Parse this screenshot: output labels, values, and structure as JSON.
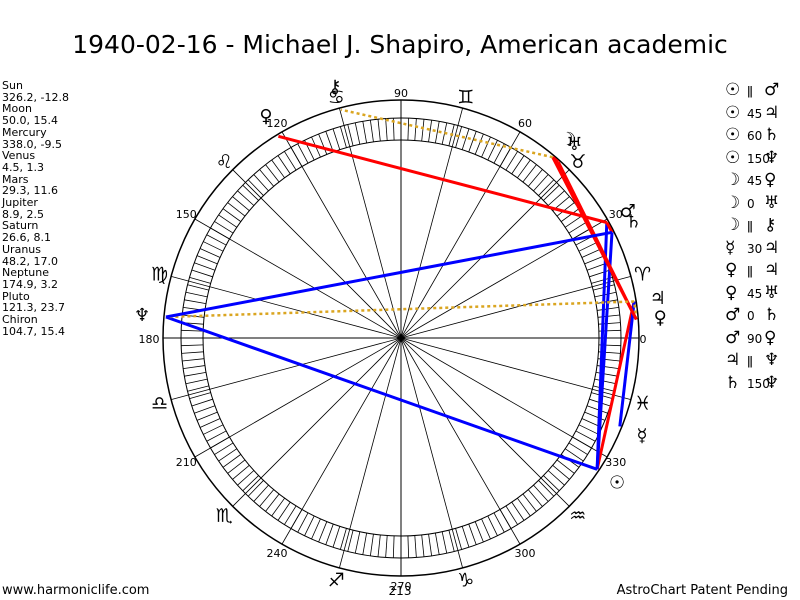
{
  "title": "1940-02-16 - Michael J. Shapiro, American academic",
  "planets": [
    {
      "name": "Sun",
      "coords": "326.2, -12.8",
      "symbol": "☉",
      "lon": 326.2
    },
    {
      "name": "Moon",
      "coords": "50.0, 15.4",
      "symbol": "☽",
      "lon": 50.0
    },
    {
      "name": "Mercury",
      "coords": "338.0, -9.5",
      "symbol": "☿",
      "lon": 338.0
    },
    {
      "name": "Venus",
      "coords": "4.5, 1.3",
      "symbol": "♀",
      "lon": 4.5
    },
    {
      "name": "Mars",
      "coords": "29.3, 11.6",
      "symbol": "♂",
      "lon": 29.3
    },
    {
      "name": "Jupiter",
      "coords": "8.9, 2.5",
      "symbol": "♃",
      "lon": 8.9
    },
    {
      "name": "Saturn",
      "coords": "26.6, 8.1",
      "symbol": "♄",
      "lon": 26.6
    },
    {
      "name": "Uranus",
      "coords": "48.2, 17.0",
      "symbol": "♅",
      "lon": 48.2
    },
    {
      "name": "Neptune",
      "coords": "174.9, 3.2",
      "symbol": "♆",
      "lon": 174.9
    },
    {
      "name": "Pluto",
      "coords": "121.3, 23.7",
      "symbol": "♀",
      "lon": 121.3
    },
    {
      "name": "Chiron",
      "coords": "104.7, 15.4",
      "symbol": "⚷",
      "lon": 104.7
    }
  ],
  "aspects": [
    {
      "p1": "☉",
      "angle": "ǁ",
      "p2": "♂"
    },
    {
      "p1": "☉",
      "angle": "45",
      "p2": "♃"
    },
    {
      "p1": "☉",
      "angle": "60",
      "p2": "♄"
    },
    {
      "p1": "☉",
      "angle": "150",
      "p2": "♆"
    },
    {
      "p1": "☽",
      "angle": "45",
      "p2": "♀"
    },
    {
      "p1": "☽",
      "angle": "0",
      "p2": "♅"
    },
    {
      "p1": "☽",
      "angle": "ǁ",
      "p2": "⚷"
    },
    {
      "p1": "☿",
      "angle": "30",
      "p2": "♃"
    },
    {
      "p1": "♀",
      "angle": "ǁ",
      "p2": "♃"
    },
    {
      "p1": "♀",
      "angle": "45",
      "p2": "♅"
    },
    {
      "p1": "♂",
      "angle": "0",
      "p2": "♄"
    },
    {
      "p1": "♂",
      "angle": "90",
      "p2": "♀"
    },
    {
      "p1": "♃",
      "angle": "ǁ",
      "p2": "♆"
    },
    {
      "p1": "♄",
      "angle": "150",
      "p2": "♆"
    }
  ],
  "wheel": {
    "degree_labels": [
      {
        "deg": 0,
        "text": "0"
      },
      {
        "deg": 30,
        "text": "30"
      },
      {
        "deg": 60,
        "text": "60"
      },
      {
        "deg": 90,
        "text": "90"
      },
      {
        "deg": 120,
        "text": "120"
      },
      {
        "deg": 150,
        "text": "150"
      },
      {
        "deg": 180,
        "text": "180"
      },
      {
        "deg": 210,
        "text": "210"
      },
      {
        "deg": 240,
        "text": "240"
      },
      {
        "deg": 270,
        "text": "270"
      },
      {
        "deg": 300,
        "text": "300"
      },
      {
        "deg": 330,
        "text": "330"
      }
    ],
    "sign_glyphs": [
      {
        "deg": 15,
        "glyph": "♈"
      },
      {
        "deg": 45,
        "glyph": "♉"
      },
      {
        "deg": 75,
        "glyph": "♊"
      },
      {
        "deg": 105,
        "glyph": "♋"
      },
      {
        "deg": 135,
        "glyph": "♌"
      },
      {
        "deg": 165,
        "glyph": "♍"
      },
      {
        "deg": 195,
        "glyph": "♎"
      },
      {
        "deg": 225,
        "glyph": "♏"
      },
      {
        "deg": 255,
        "glyph": "♐"
      },
      {
        "deg": 285,
        "glyph": "♑"
      },
      {
        "deg": 315,
        "glyph": "♒"
      },
      {
        "deg": 345,
        "glyph": "♓"
      }
    ],
    "aspect_lines": [
      {
        "from": "Sun",
        "to": "Mars",
        "color": "#0000ff",
        "style": "solid"
      },
      {
        "from": "Sun",
        "to": "Jupiter",
        "color": "#ff0000",
        "style": "solid"
      },
      {
        "from": "Sun",
        "to": "Saturn",
        "color": "#0000ff",
        "style": "solid"
      },
      {
        "from": "Sun",
        "to": "Neptune",
        "color": "#0000ff",
        "style": "solid"
      },
      {
        "from": "Moon",
        "to": "Venus",
        "color": "#ff0000",
        "style": "solid"
      },
      {
        "from": "Moon",
        "to": "Uranus",
        "color": "#ff0000",
        "style": "solid"
      },
      {
        "from": "Moon",
        "to": "Chiron",
        "color": "#daa520",
        "style": "dotted"
      },
      {
        "from": "Mercury",
        "to": "Jupiter",
        "color": "#0000ff",
        "style": "solid"
      },
      {
        "from": "Venus",
        "to": "Jupiter",
        "color": "#daa520",
        "style": "dotted"
      },
      {
        "from": "Venus",
        "to": "Uranus",
        "color": "#ff0000",
        "style": "solid"
      },
      {
        "from": "Mars",
        "to": "Saturn",
        "color": "#ff0000",
        "style": "solid"
      },
      {
        "from": "Mars",
        "to": "Pluto",
        "color": "#ff0000",
        "style": "solid"
      },
      {
        "from": "Jupiter",
        "to": "Neptune",
        "color": "#daa520",
        "style": "dotted"
      },
      {
        "from": "Saturn",
        "to": "Neptune",
        "color": "#0000ff",
        "style": "solid"
      }
    ]
  },
  "footer": {
    "left": "www.harmoniclife.com",
    "center": "213",
    "right": "AstroChart Patent Pending"
  }
}
